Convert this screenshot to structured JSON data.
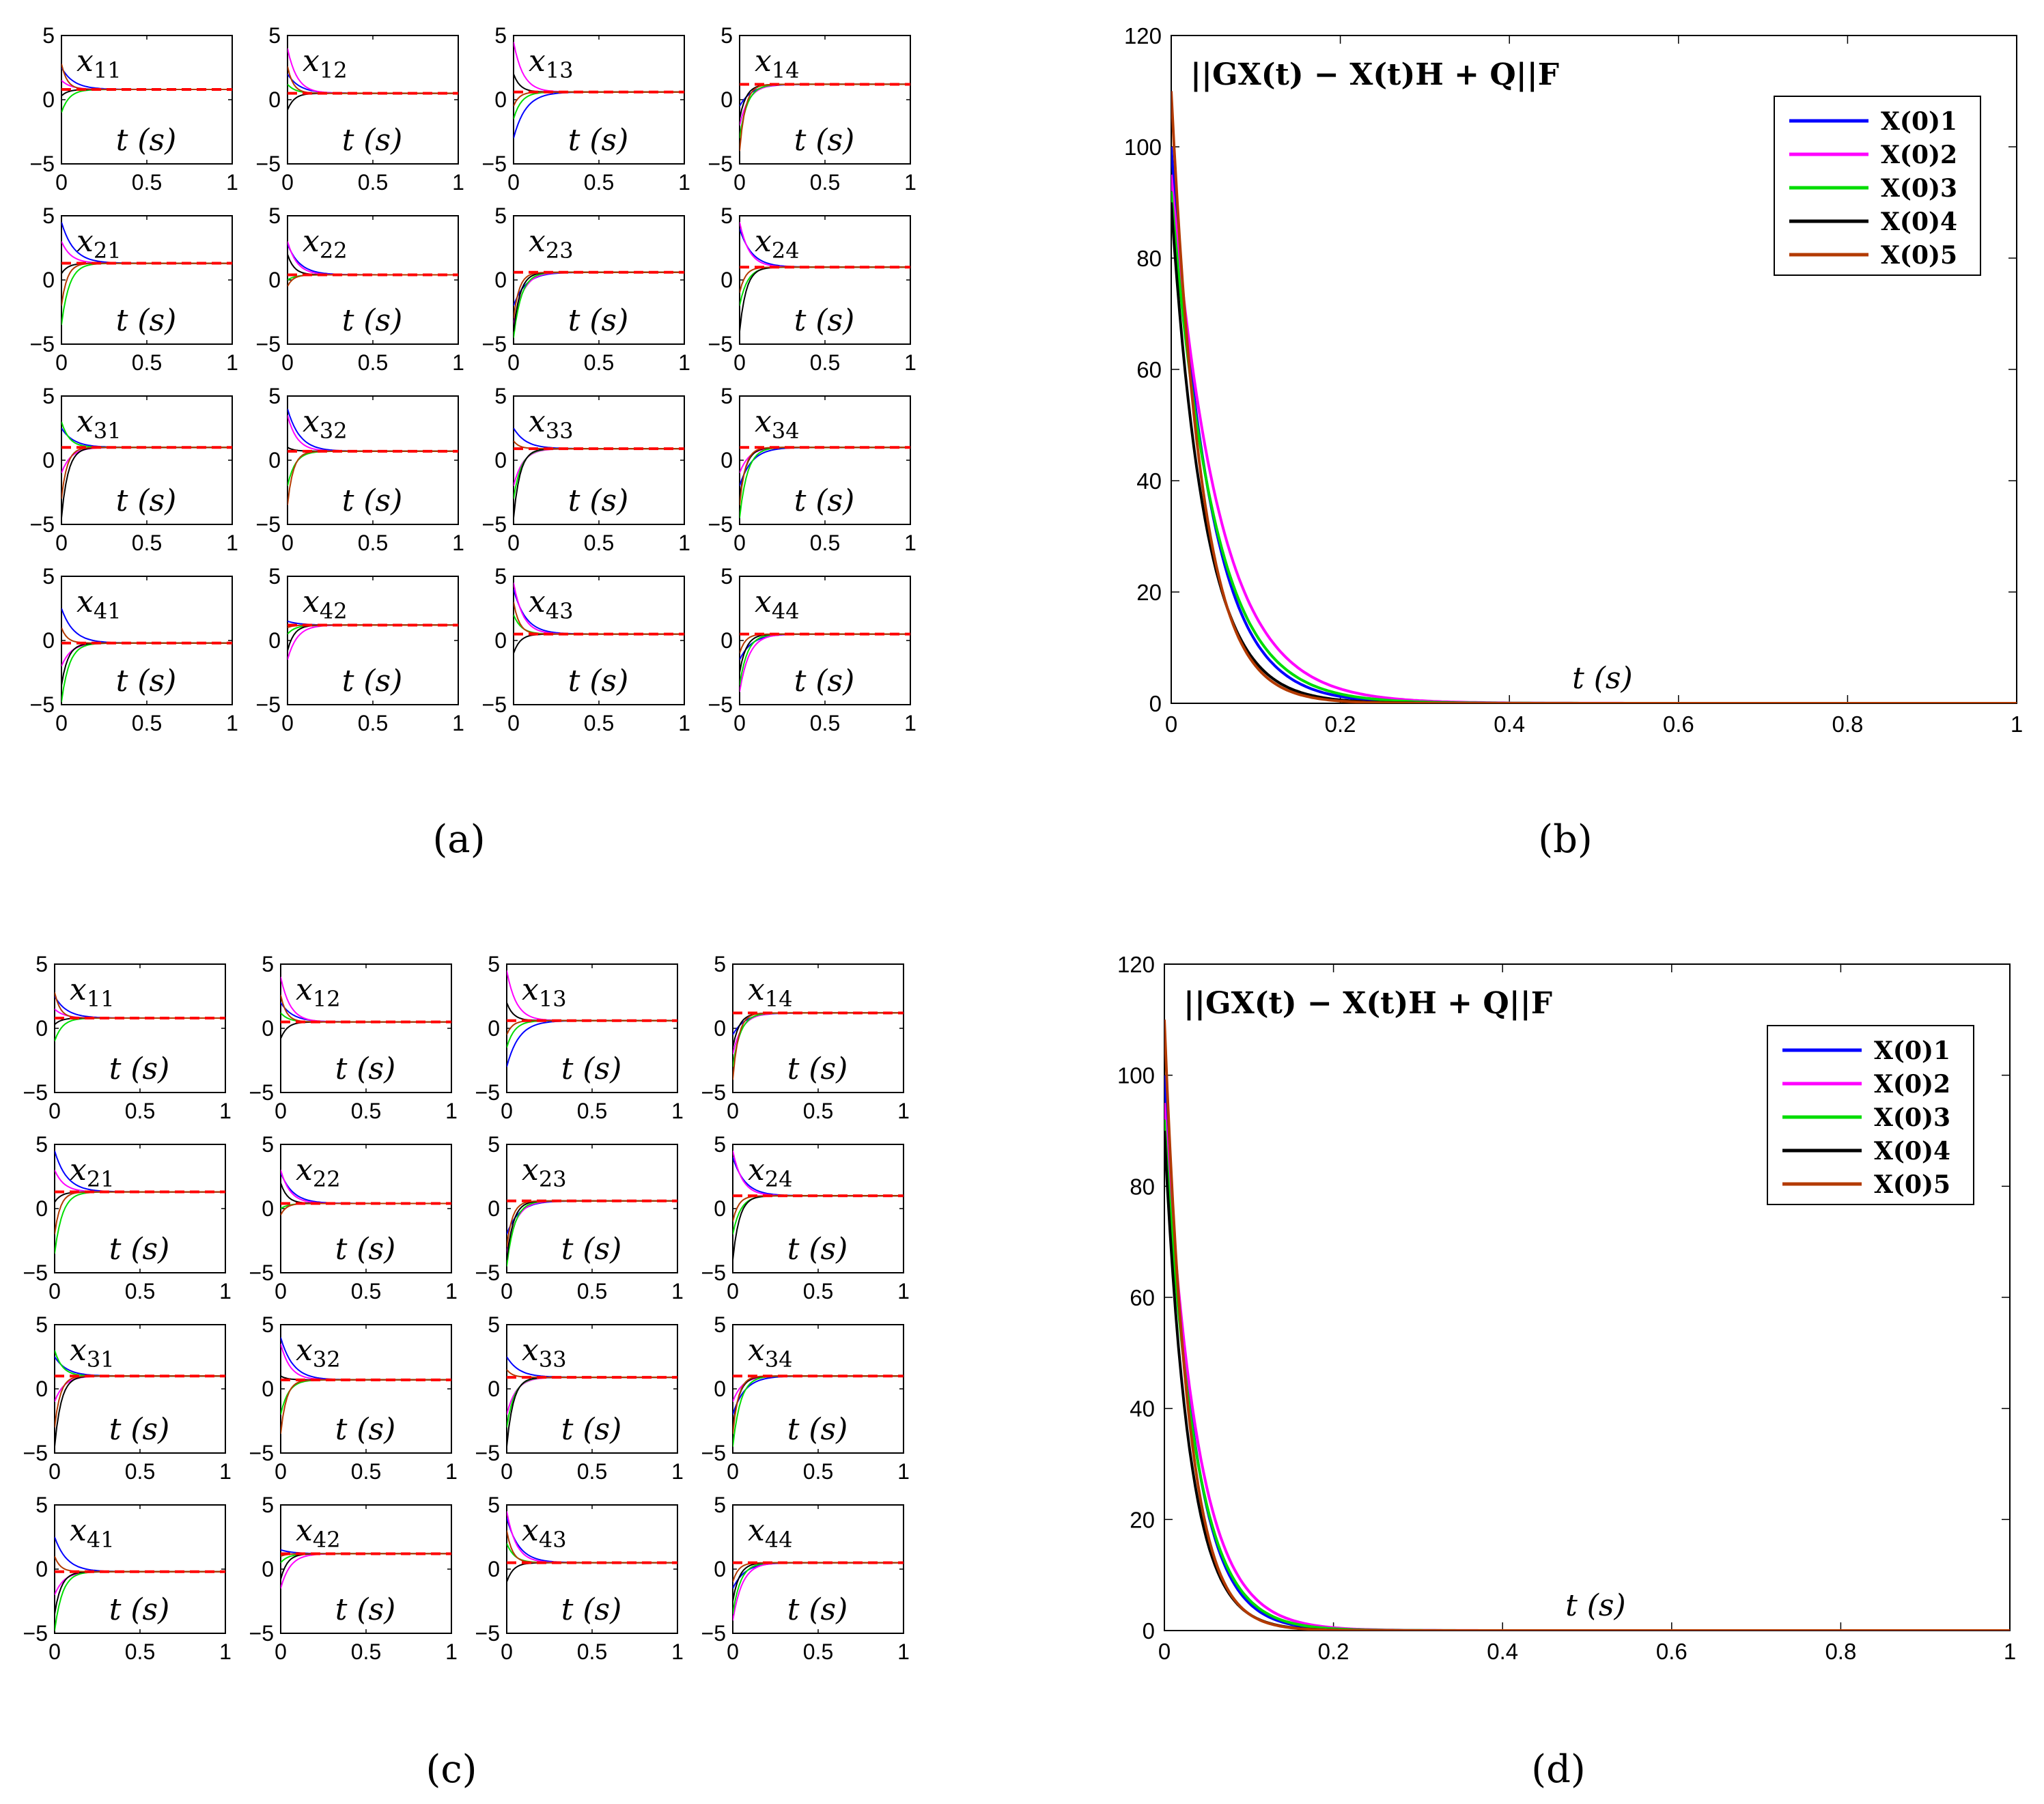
{
  "chart_data": [
    {
      "panel": "a",
      "type": "line",
      "panel_label": "(a)",
      "grid": "4x4",
      "xlim": [
        0,
        1
      ],
      "ylim": [
        -5,
        5
      ],
      "xticks": [
        "0",
        "0.5",
        "1"
      ],
      "yticks": [
        "5",
        "0",
        "−5"
      ],
      "xlabel": "t (s)",
      "series_colors": [
        "#0000ff",
        "#ff00ff",
        "#00dd00",
        "#000000",
        "#b33a00"
      ],
      "dashed_color": "#ff0000",
      "cells": [
        {
          "label": "x11",
          "final": 0.8,
          "starts": [
            2.5,
            1.5,
            -1.0,
            0.3,
            2.8
          ]
        },
        {
          "label": "x12",
          "final": 0.5,
          "starts": [
            2.0,
            4.0,
            1.2,
            -0.8,
            2.6
          ]
        },
        {
          "label": "x13",
          "final": 0.6,
          "starts": [
            -3.0,
            4.5,
            -1.5,
            2.0,
            -0.5
          ]
        },
        {
          "label": "x14",
          "final": 1.2,
          "starts": [
            -0.5,
            -2.0,
            -3.0,
            -1.5,
            -4.0
          ]
        },
        {
          "label": "x21",
          "final": 1.3,
          "starts": [
            4.5,
            3.0,
            -3.5,
            0.5,
            -2.0
          ]
        },
        {
          "label": "x22",
          "final": 0.4,
          "starts": [
            2.8,
            3.0,
            0.0,
            2.0,
            -0.5
          ]
        },
        {
          "label": "x23",
          "final": 0.6,
          "starts": [
            -2.0,
            -3.5,
            -4.5,
            -4.0,
            -3.0
          ]
        },
        {
          "label": "x24",
          "final": 1.0,
          "starts": [
            4.0,
            4.5,
            -2.0,
            -4.0,
            -1.0
          ]
        },
        {
          "label": "x31",
          "final": 1.0,
          "starts": [
            2.5,
            -1.0,
            3.0,
            -4.5,
            -3.0
          ]
        },
        {
          "label": "x32",
          "final": 0.7,
          "starts": [
            4.0,
            3.5,
            -2.0,
            1.0,
            -3.5
          ]
        },
        {
          "label": "x33",
          "final": 0.9,
          "starts": [
            2.5,
            -2.0,
            -3.0,
            -4.5,
            1.5
          ]
        },
        {
          "label": "x34",
          "final": 1.0,
          "starts": [
            -2.0,
            -1.0,
            -4.5,
            -3.0,
            -3.5
          ]
        },
        {
          "label": "x41",
          "final": -0.2,
          "starts": [
            2.5,
            -2.0,
            -4.8,
            -3.5,
            1.0
          ]
        },
        {
          "label": "x42",
          "final": 1.2,
          "starts": [
            1.5,
            -1.5,
            0.5,
            -0.8,
            1.0
          ]
        },
        {
          "label": "x43",
          "final": 0.5,
          "starts": [
            4.0,
            4.5,
            2.0,
            -1.0,
            3.0
          ]
        },
        {
          "label": "x44",
          "final": 0.5,
          "starts": [
            -1.5,
            -4.0,
            -3.5,
            -2.5,
            -1.0
          ]
        }
      ]
    },
    {
      "panel": "b",
      "type": "line",
      "panel_label": "(b)",
      "title": "||GX(t) − X(t)H + Q||F",
      "xlabel": "t (s)",
      "xlim": [
        0,
        1
      ],
      "ylim": [
        0,
        120
      ],
      "xticks": [
        "0",
        "0.2",
        "0.4",
        "0.6",
        "0.8",
        "1"
      ],
      "yticks": [
        "0",
        "20",
        "40",
        "60",
        "80",
        "100",
        "120"
      ],
      "legend_position": "top-right",
      "series": [
        {
          "name": "X(0)1",
          "color": "#0000ff",
          "start": 100,
          "decay": 22
        },
        {
          "name": "X(0)2",
          "color": "#ff00ff",
          "start": 95,
          "decay": 18
        },
        {
          "name": "X(0)3",
          "color": "#00dd00",
          "start": 92,
          "decay": 20
        },
        {
          "name": "X(0)4",
          "color": "#000000",
          "start": 90,
          "decay": 25
        },
        {
          "name": "X(0)5",
          "color": "#b33a00",
          "start": 110,
          "decay": 28
        }
      ]
    },
    {
      "panel": "c",
      "type": "line",
      "panel_label": "(c)",
      "grid": "4x4",
      "xlim": [
        0,
        1
      ],
      "ylim": [
        -5,
        5
      ],
      "xticks": [
        "0",
        "0.5",
        "1"
      ],
      "yticks": [
        "5",
        "0",
        "−5"
      ],
      "xlabel": "t (s)",
      "series_colors": [
        "#0000ff",
        "#ff00ff",
        "#00dd00",
        "#000000",
        "#b33a00"
      ],
      "dashed_color": "#ff0000",
      "cells": [
        {
          "label": "x11",
          "final": 0.8,
          "starts": [
            2.5,
            1.5,
            -1.0,
            0.3,
            2.8
          ]
        },
        {
          "label": "x12",
          "final": 0.5,
          "starts": [
            2.0,
            4.0,
            1.2,
            -0.8,
            2.6
          ]
        },
        {
          "label": "x13",
          "final": 0.6,
          "starts": [
            -3.0,
            4.5,
            -1.5,
            2.0,
            -0.5
          ]
        },
        {
          "label": "x14",
          "final": 1.2,
          "starts": [
            -0.5,
            -2.0,
            -3.0,
            -1.5,
            -4.0
          ]
        },
        {
          "label": "x21",
          "final": 1.3,
          "starts": [
            4.5,
            3.0,
            -3.5,
            0.5,
            -2.0
          ]
        },
        {
          "label": "x22",
          "final": 0.4,
          "starts": [
            2.8,
            3.0,
            0.0,
            2.0,
            -0.5
          ]
        },
        {
          "label": "x23",
          "final": 0.6,
          "starts": [
            -2.0,
            -3.5,
            -4.5,
            -4.0,
            -3.0
          ]
        },
        {
          "label": "x24",
          "final": 1.0,
          "starts": [
            4.0,
            4.5,
            -2.0,
            -4.0,
            -1.0
          ]
        },
        {
          "label": "x31",
          "final": 1.0,
          "starts": [
            2.5,
            -1.0,
            3.0,
            -4.5,
            -3.0
          ]
        },
        {
          "label": "x32",
          "final": 0.7,
          "starts": [
            4.0,
            3.5,
            -2.0,
            1.0,
            -3.5
          ]
        },
        {
          "label": "x33",
          "final": 0.9,
          "starts": [
            2.5,
            -2.0,
            -3.0,
            -4.5,
            1.5
          ]
        },
        {
          "label": "x34",
          "final": 1.0,
          "starts": [
            -2.0,
            -1.0,
            -4.5,
            -3.0,
            -3.5
          ]
        },
        {
          "label": "x41",
          "final": -0.2,
          "starts": [
            2.5,
            -2.0,
            -4.8,
            -3.5,
            1.0
          ]
        },
        {
          "label": "x42",
          "final": 1.2,
          "starts": [
            1.5,
            -1.5,
            0.5,
            -0.8,
            1.0
          ]
        },
        {
          "label": "x43",
          "final": 0.5,
          "starts": [
            4.0,
            4.5,
            2.0,
            -1.0,
            3.0
          ]
        },
        {
          "label": "x44",
          "final": 0.5,
          "starts": [
            -1.5,
            -4.0,
            -3.5,
            -2.5,
            -1.0
          ]
        }
      ]
    },
    {
      "panel": "d",
      "type": "line",
      "panel_label": "(d)",
      "title": "||GX(t) − X(t)H + Q||F",
      "xlabel": "t (s)",
      "xlim": [
        0,
        1
      ],
      "ylim": [
        0,
        120
      ],
      "xticks": [
        "0",
        "0.2",
        "0.4",
        "0.6",
        "0.8",
        "1"
      ],
      "yticks": [
        "0",
        "20",
        "40",
        "60",
        "80",
        "100",
        "120"
      ],
      "legend_position": "top-right",
      "series": [
        {
          "name": "X(0)1",
          "color": "#0000ff",
          "start": 100,
          "decay": 30
        },
        {
          "name": "X(0)2",
          "color": "#ff00ff",
          "start": 95,
          "decay": 26
        },
        {
          "name": "X(0)3",
          "color": "#00dd00",
          "start": 92,
          "decay": 28
        },
        {
          "name": "X(0)4",
          "color": "#000000",
          "start": 90,
          "decay": 34
        },
        {
          "name": "X(0)5",
          "color": "#b33a00",
          "start": 110,
          "decay": 36
        }
      ]
    }
  ]
}
